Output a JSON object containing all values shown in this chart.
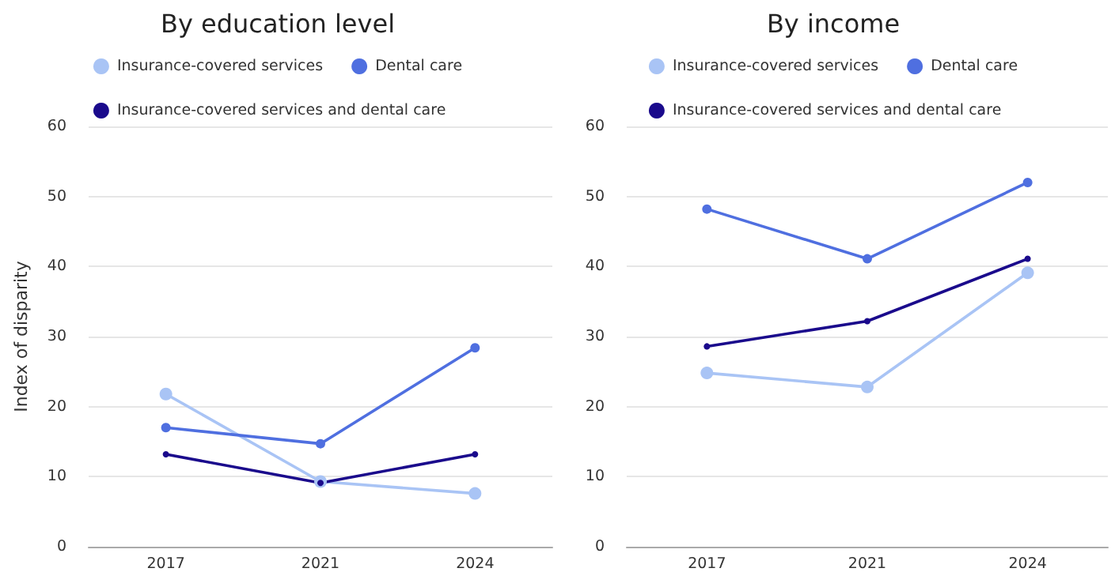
{
  "chart_data": [
    {
      "type": "line",
      "title": "By education level",
      "ylabel": "Index of disparity",
      "categories": [
        "2017",
        "2021",
        "2024"
      ],
      "ylim": [
        0,
        60
      ],
      "yticks": [
        0,
        10,
        20,
        30,
        40,
        50,
        60
      ],
      "grid": "y",
      "legend": "top",
      "marker": "circle",
      "line_style": "solid",
      "series": [
        {
          "name": "Insurance-covered services",
          "color": "#a9c4f5",
          "values": [
            21.8,
            9.3,
            7.6
          ]
        },
        {
          "name": "Dental care",
          "color": "#4f6fe0",
          "values": [
            17,
            14.7,
            28.4
          ]
        },
        {
          "name": "Insurance-covered services and dental care",
          "color": "#1a0a8c",
          "values": [
            13.2,
            9.1,
            13.2
          ]
        }
      ]
    },
    {
      "type": "line",
      "title": "By income",
      "categories": [
        "2017",
        "2021",
        "2024"
      ],
      "ylim": [
        0,
        60
      ],
      "yticks": [
        0,
        10,
        20,
        30,
        40,
        50,
        60
      ],
      "grid": "y",
      "legend": "top",
      "marker": "circle",
      "line_style": "solid",
      "series": [
        {
          "name": "Insurance-covered services",
          "color": "#a9c4f5",
          "values": [
            24.8,
            22.8,
            39.1
          ]
        },
        {
          "name": "Dental care",
          "color": "#4f6fe0",
          "values": [
            48.2,
            41.1,
            52
          ]
        },
        {
          "name": "Insurance-covered services and dental care",
          "color": "#1a0a8c",
          "values": [
            28.6,
            32.2,
            41.1
          ]
        }
      ]
    }
  ]
}
